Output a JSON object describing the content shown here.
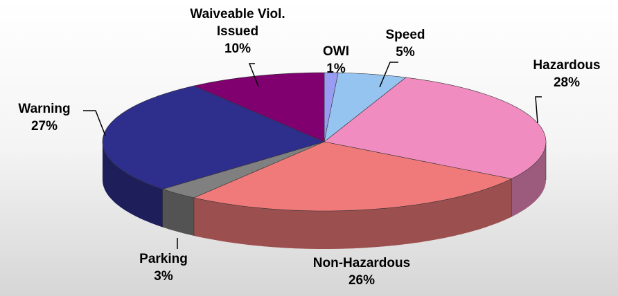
{
  "chart_data": {
    "type": "pie3d",
    "categories": [
      "OWI",
      "Speed",
      "Hazardous",
      "Non-Hazardous",
      "Parking",
      "Warning",
      "Waiveable Viol. Issued"
    ],
    "values": [
      1,
      5,
      28,
      26,
      3,
      27,
      10
    ],
    "value_labels": [
      "1%",
      "5%",
      "28%",
      "26%",
      "3%",
      "27%",
      "10%"
    ],
    "colors": [
      "#9a9cf4",
      "#96c4f0",
      "#f08cc0",
      "#f07a7a",
      "#808080",
      "#2e2e8c",
      "#800070"
    ]
  }
}
